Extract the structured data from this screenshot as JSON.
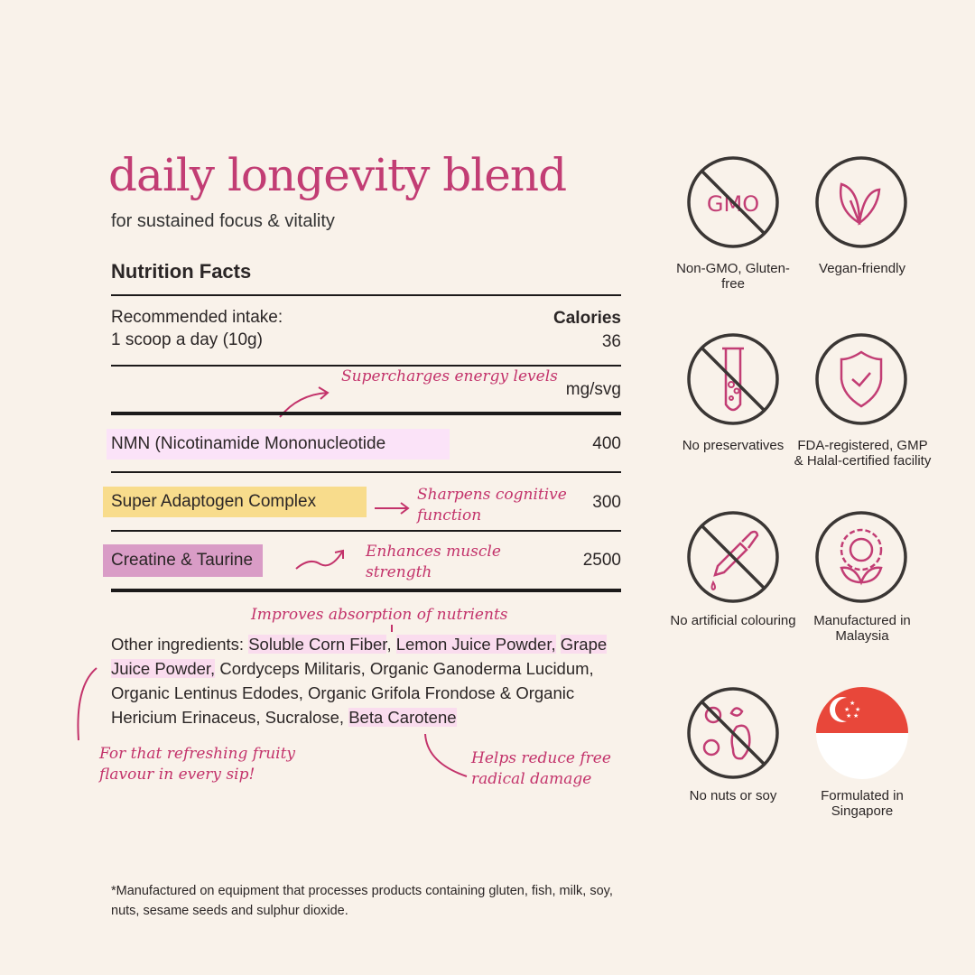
{
  "header": {
    "title": "daily longevity blend",
    "subtitle": "for sustained focus & vitality"
  },
  "facts": {
    "heading": "Nutrition Facts",
    "intake_label": "Recommended intake:",
    "intake_value": "1 scoop a day (10g)",
    "calories_label": "Calories",
    "calories_value": "36",
    "unit": "mg/svg",
    "rows": [
      {
        "name": "NMN (Nicotinamide Mononucleotide",
        "value": "400",
        "highlight": "#fbe3f8",
        "note": "Supercharges energy levels"
      },
      {
        "name": "Super Adaptogen Complex",
        "value": "300",
        "highlight": "#f8dc8c",
        "note": "Sharpens cognitive function"
      },
      {
        "name": "Creatine & Taurine",
        "value": "2500",
        "highlight": "#d99cc6",
        "note": "Enhances muscle strength"
      }
    ]
  },
  "ingredients": {
    "label": "Other ingredients:",
    "items": [
      "Soluble Corn Fiber",
      ", ",
      "Lemon Juice Powder,",
      "Grape Juice Powder,",
      " Cordyceps Militaris, Organic Ganoderma Lucidum, Organic Lentinus Edodes, Organic Grifola Frondose & Organic Hericium Erinaceus, Sucralose, ",
      "Beta Carotene"
    ],
    "notes": {
      "absorption": "Improves absorption of nutrients",
      "fruity": "For that refreshing fruity flavour in every sip!",
      "radical": "Helps reduce free radical damage"
    }
  },
  "badges": [
    {
      "label": "Non-GMO, Gluten-free",
      "icon": "no-gmo-icon",
      "icon_text": "GMO"
    },
    {
      "label": "Vegan-friendly",
      "icon": "leaf-icon"
    },
    {
      "label": "No preservatives",
      "icon": "no-test-tube-icon"
    },
    {
      "label": "FDA-registered, GMP & Halal-certified facility",
      "icon": "shield-check-icon"
    },
    {
      "label": "No artificial colouring",
      "icon": "no-dropper-icon"
    },
    {
      "label": "Manufactured in Malaysia",
      "icon": "gear-plant-icon"
    },
    {
      "label": "No nuts or soy",
      "icon": "no-nuts-icon"
    },
    {
      "label": "Formulated in Singapore",
      "icon": "singapore-flag-icon"
    }
  ],
  "footnote": "*Manufactured on equipment that processes products containing gluten, fish, milk, soy, nuts, sesame seeds and sulphur dioxide.",
  "colors": {
    "accent": "#c23d74",
    "background": "#f9f2ea",
    "icon_stroke": "#3a3634"
  }
}
